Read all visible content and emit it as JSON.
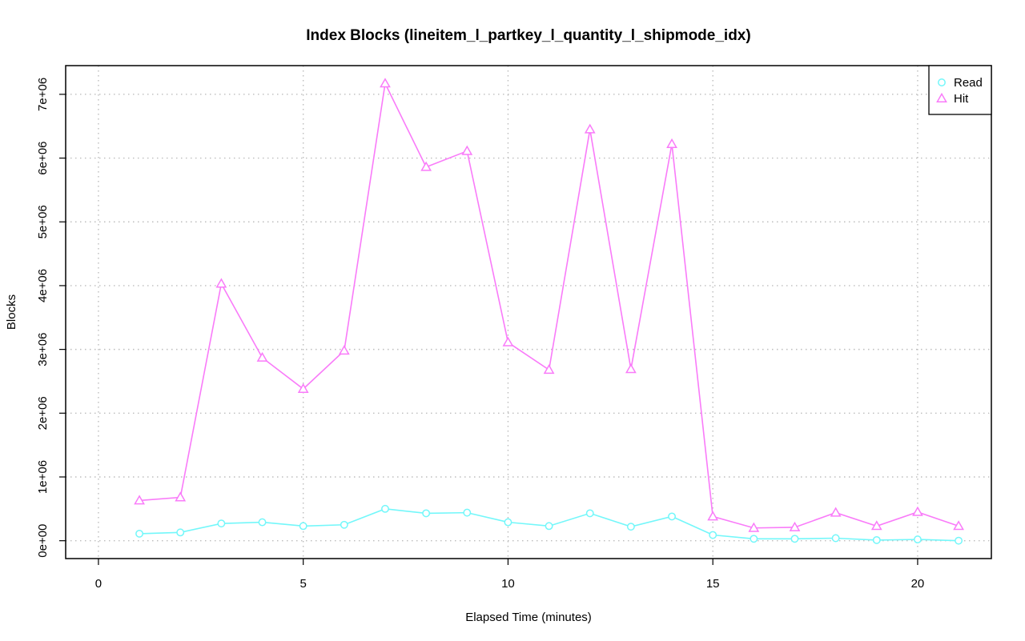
{
  "chart_data": {
    "type": "line",
    "title": "Index Blocks (lineitem_l_partkey_l_quantity_l_shipmode_idx)",
    "xlabel": "Elapsed Time (minutes)",
    "ylabel": "Blocks",
    "xlim": [
      -0.8,
      21.8
    ],
    "ylim": [
      -280000,
      7450000
    ],
    "x_ticks": [
      0,
      5,
      10,
      15,
      20
    ],
    "x_tick_labels": [
      "0",
      "5",
      "10",
      "15",
      "20"
    ],
    "y_ticks": [
      0,
      1000000,
      2000000,
      3000000,
      4000000,
      5000000,
      6000000,
      7000000
    ],
    "y_tick_labels": [
      "0e+00",
      "1e+06",
      "2e+06",
      "3e+06",
      "4e+06",
      "5e+06",
      "6e+06",
      "7e+06"
    ],
    "grid": true,
    "legend_position": "top-right",
    "x": [
      1,
      2,
      3,
      4,
      5,
      6,
      7,
      8,
      9,
      10,
      11,
      12,
      13,
      14,
      15,
      16,
      17,
      18,
      19,
      20,
      21
    ],
    "series": [
      {
        "name": "Read",
        "color": "#73f7fa",
        "marker": "circle",
        "values": [
          110000,
          130000,
          270000,
          290000,
          230000,
          250000,
          500000,
          430000,
          440000,
          290000,
          230000,
          430000,
          220000,
          380000,
          90000,
          30000,
          30000,
          40000,
          10000,
          20000,
          0
        ]
      },
      {
        "name": "Hit",
        "color": "#f97bf9",
        "marker": "triangle",
        "values": [
          630000,
          680000,
          4030000,
          2870000,
          2380000,
          2980000,
          7170000,
          5860000,
          6110000,
          3110000,
          2680000,
          6450000,
          2690000,
          6220000,
          380000,
          200000,
          210000,
          440000,
          230000,
          450000,
          230000
        ]
      }
    ]
  }
}
